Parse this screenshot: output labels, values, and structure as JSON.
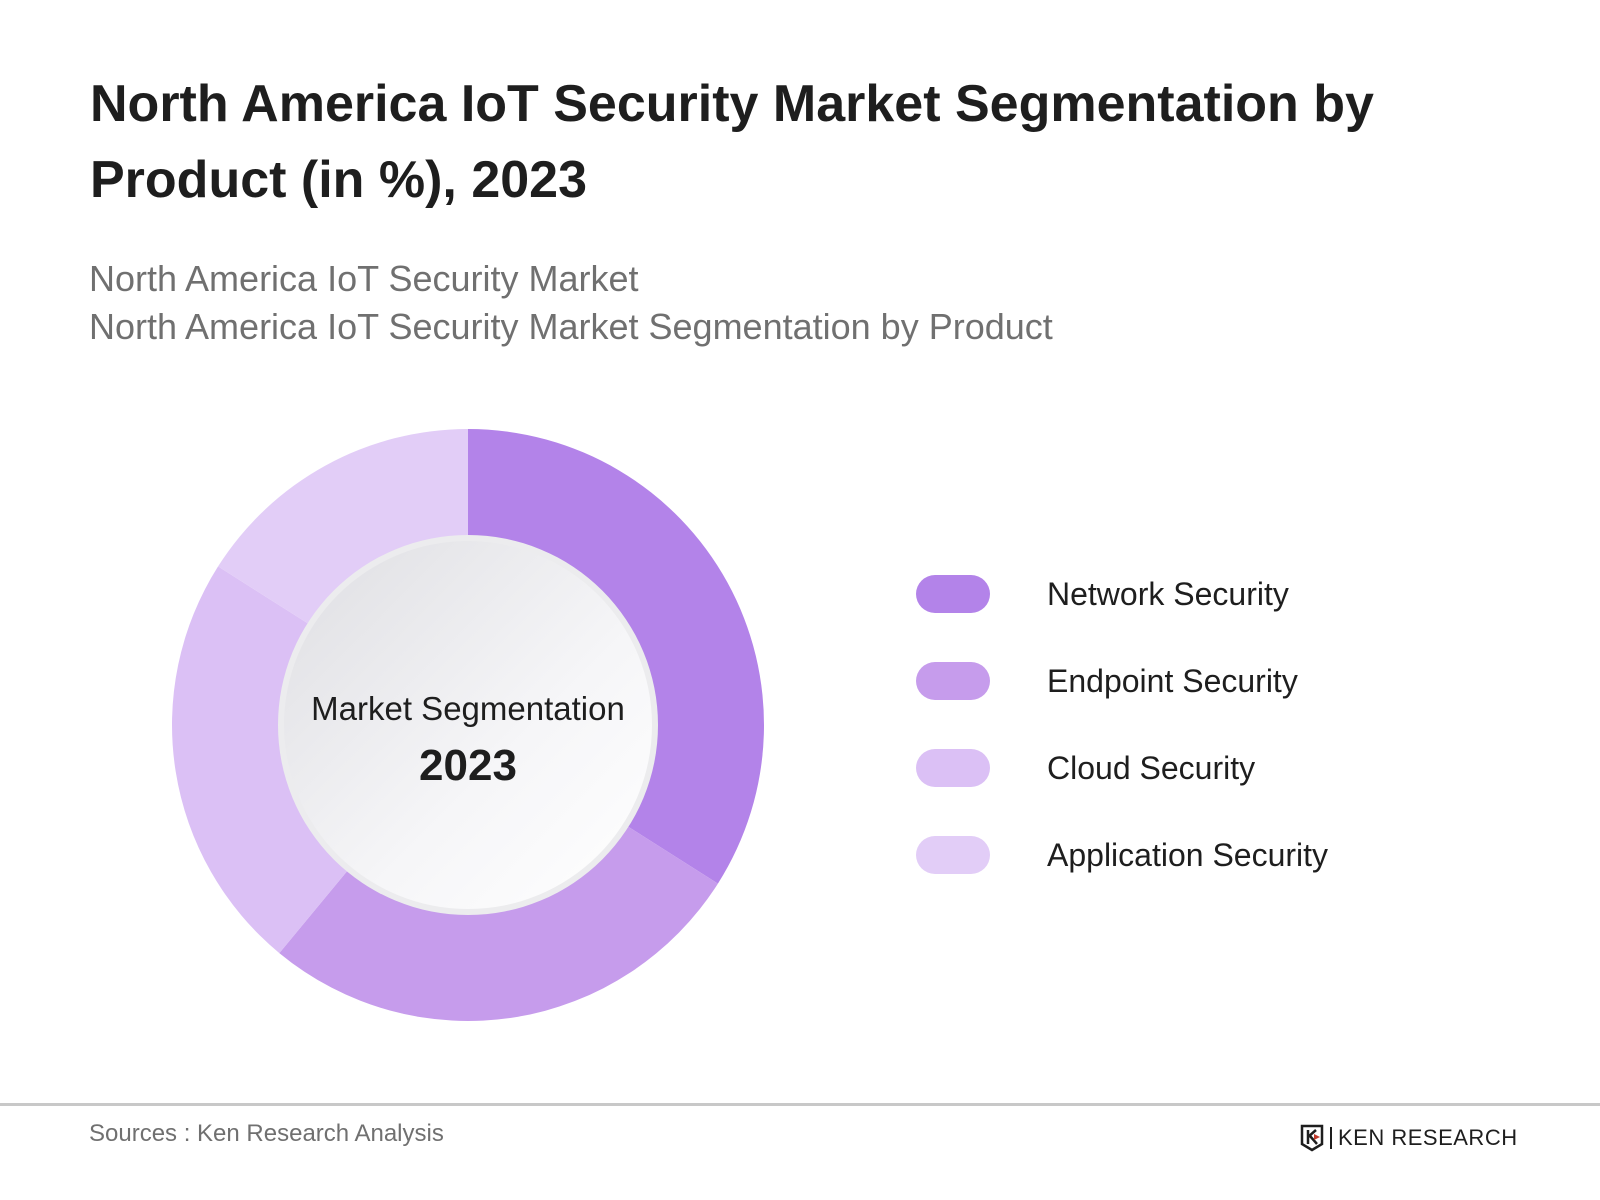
{
  "title": "North America IoT Security Market Segmentation by Product (in %), 2023",
  "subtitles": [
    "North America IoT Security Market",
    "North America IoT Security Market Segmentation by Product"
  ],
  "chart_data": {
    "type": "pie",
    "variant": "donut",
    "center_label": "Market Segmentation",
    "center_value": "2023",
    "categories": [
      "Network Security",
      "Endpoint Security",
      "Cloud Security",
      "Application Security"
    ],
    "values": [
      34,
      27,
      23,
      16
    ],
    "colors": [
      "#b383e9",
      "#c69cec",
      "#dbc0f5",
      "#e2cdf7"
    ],
    "legend_position": "right"
  },
  "footer": {
    "sources": "Sources : Ken Research Analysis",
    "logo_text": "KEN RESEARCH"
  }
}
